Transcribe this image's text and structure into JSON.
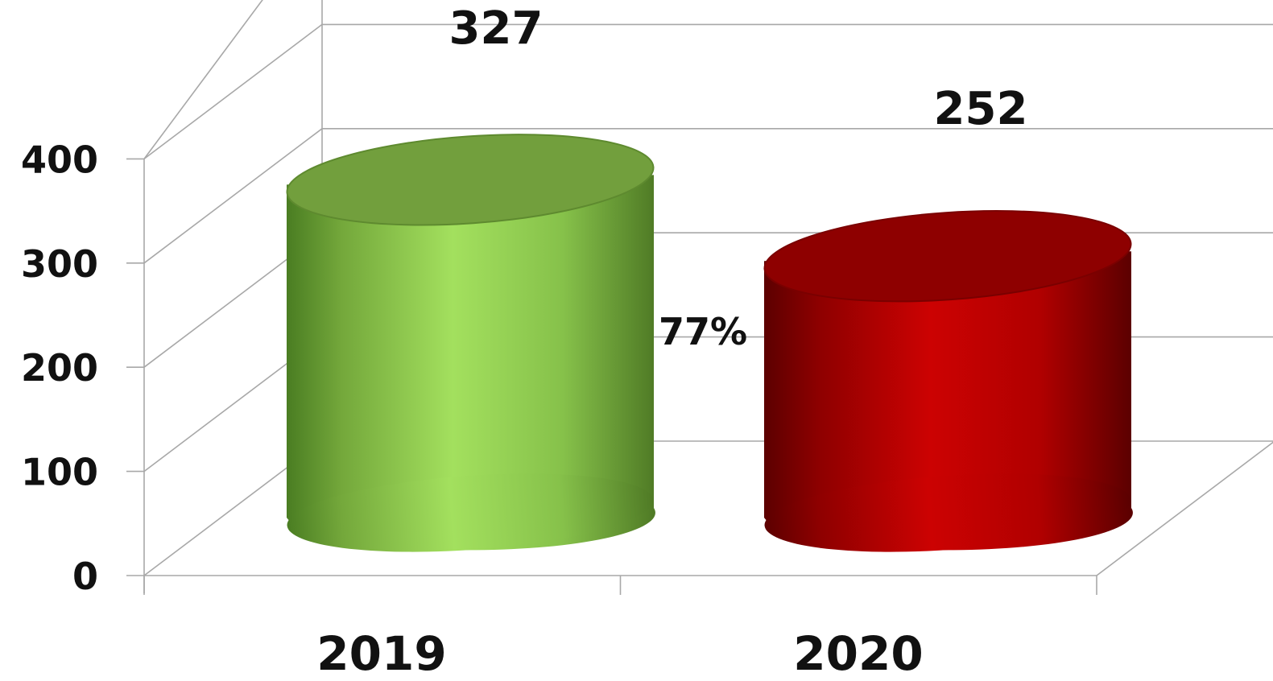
{
  "chart_data": {
    "type": "bar",
    "style": "3d-cylinder",
    "categories": [
      "2019",
      "2020"
    ],
    "values": [
      327,
      252
    ],
    "value_labels": [
      "327",
      "252"
    ],
    "colors": [
      "#8fcf4c",
      "#b80000"
    ],
    "annotation": "77%",
    "ylim": [
      0,
      400
    ],
    "yticks": [
      "0",
      "100",
      "200",
      "300",
      "400"
    ],
    "grid": true,
    "title": "",
    "xlabel": "",
    "ylabel": ""
  }
}
